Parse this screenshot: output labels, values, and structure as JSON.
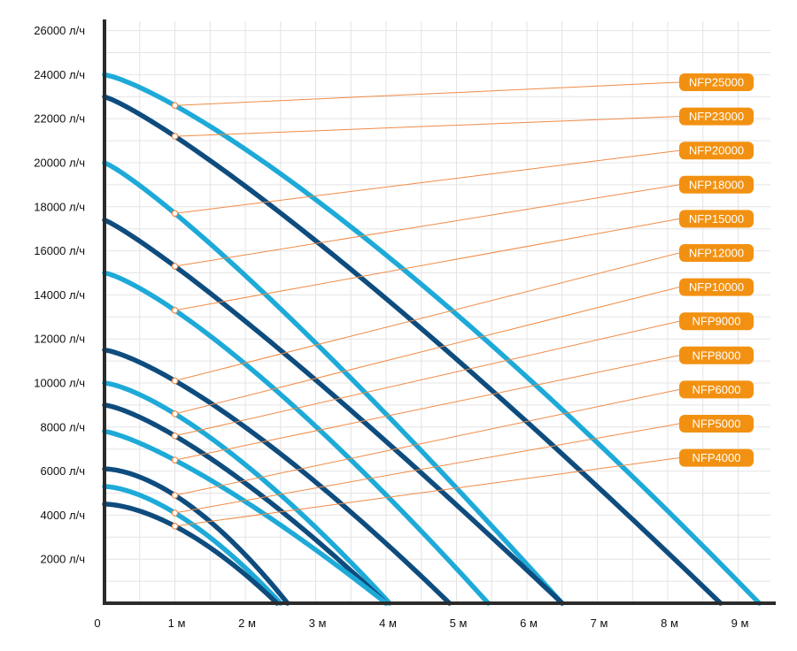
{
  "chart_data": {
    "type": "line",
    "title": "",
    "xlabel": "",
    "ylabel": "",
    "xlim": [
      0,
      9.3
    ],
    "ylim": [
      0,
      26000
    ],
    "grid": true,
    "legend_position": "right",
    "x_ticks": [
      {
        "value": 0,
        "label": "0"
      },
      {
        "value": 1,
        "label": "1 м"
      },
      {
        "value": 2,
        "label": "2 м"
      },
      {
        "value": 3,
        "label": "3 м"
      },
      {
        "value": 4,
        "label": "4 м"
      },
      {
        "value": 5,
        "label": "5 м"
      },
      {
        "value": 6,
        "label": "6 м"
      },
      {
        "value": 7,
        "label": "7 м"
      },
      {
        "value": 8,
        "label": "8 м"
      },
      {
        "value": 9,
        "label": "9 м"
      }
    ],
    "y_ticks": [
      {
        "value": 2000,
        "label": "2000 л/ч"
      },
      {
        "value": 4000,
        "label": "4000 л/ч"
      },
      {
        "value": 6000,
        "label": "6000 л/ч"
      },
      {
        "value": 8000,
        "label": "8000 л/ч"
      },
      {
        "value": 10000,
        "label": "10000 л/ч"
      },
      {
        "value": 12000,
        "label": "12000 л/ч"
      },
      {
        "value": 14000,
        "label": "14000 л/ч"
      },
      {
        "value": 16000,
        "label": "16000 л/ч"
      },
      {
        "value": 18000,
        "label": "18000 л/ч"
      },
      {
        "value": 20000,
        "label": "20000 л/ч"
      },
      {
        "value": 22000,
        "label": "22000 л/ч"
      },
      {
        "value": 24000,
        "label": "24000 л/ч"
      },
      {
        "value": 26000,
        "label": "26000 л/ч"
      }
    ],
    "series": [
      {
        "name": "NFP25000",
        "color": "#1eaad8",
        "max_flow": 24000,
        "max_head": 9.3,
        "value_at_1m": 22600
      },
      {
        "name": "NFP23000",
        "color": "#0e4c7e",
        "max_flow": 23000,
        "max_head": 8.75,
        "value_at_1m": 21200
      },
      {
        "name": "NFP20000",
        "color": "#1eaad8",
        "max_flow": 20000,
        "max_head": 6.5,
        "value_at_1m": 17700
      },
      {
        "name": "NFP18000",
        "color": "#0e4c7e",
        "max_flow": 17400,
        "max_head": 6.5,
        "value_at_1m": 15300
      },
      {
        "name": "NFP15000",
        "color": "#1eaad8",
        "max_flow": 15000,
        "max_head": 5.45,
        "value_at_1m": 13300
      },
      {
        "name": "NFP12000",
        "color": "#0e4c7e",
        "max_flow": 11500,
        "max_head": 4.9,
        "value_at_1m": 10100
      },
      {
        "name": "NFP10000",
        "color": "#1eaad8",
        "max_flow": 10000,
        "max_head": 4.05,
        "value_at_1m": 8600
      },
      {
        "name": "NFP9000",
        "color": "#0e4c7e",
        "max_flow": 9000,
        "max_head": 4.0,
        "value_at_1m": 7600
      },
      {
        "name": "NFP8000",
        "color": "#1eaad8",
        "max_flow": 7800,
        "max_head": 4.0,
        "value_at_1m": 6500
      },
      {
        "name": "NFP6000",
        "color": "#0e4c7e",
        "max_flow": 6100,
        "max_head": 2.6,
        "value_at_1m": 4900
      },
      {
        "name": "NFP5000",
        "color": "#1eaad8",
        "max_flow": 5300,
        "max_head": 2.5,
        "value_at_1m": 4100
      },
      {
        "name": "NFP4000",
        "color": "#0e4c7e",
        "max_flow": 4500,
        "max_head": 2.45,
        "value_at_1m": 3500
      }
    ],
    "colors": {
      "light_curve": "#1eaad8",
      "dark_curve": "#0e4c7e",
      "badge": "#f29111",
      "leader": "#ef8b46",
      "grid": "#e4e4e4",
      "axis": "#2b2b2b"
    }
  }
}
